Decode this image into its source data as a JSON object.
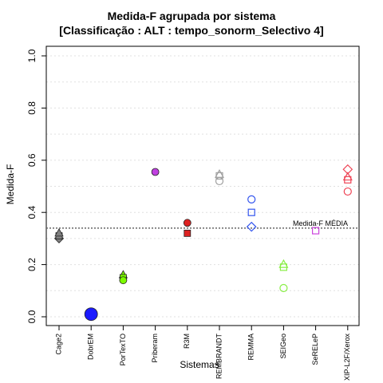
{
  "chart_data": {
    "type": "scatter",
    "title": "Medida-F agrupada por sistema",
    "subtitle": "[Classificação : ALT : tempo_sonorm_Selectivo 4]",
    "xlabel": "Sistemas",
    "ylabel": "Medida-F",
    "ylim": [
      0,
      1
    ],
    "yticks": [
      "0.0",
      "0.2",
      "0.4",
      "0.6",
      "0.8",
      "1.0"
    ],
    "grid": true,
    "categories": [
      "Cage2",
      "DobrEM",
      "PorTexTO",
      "Priberam",
      "R3M",
      "REMBRANDT",
      "REMMA",
      "SEIGeo",
      "SeRELeP",
      "XIP-L2F/Xerox"
    ],
    "reference_line": {
      "label": "Medida-F MÉDIA",
      "value": 0.34
    },
    "series": [
      {
        "category": "Cage2",
        "color": "#808080",
        "points": [
          {
            "shape": "diamond",
            "filled": true,
            "value": 0.3
          },
          {
            "shape": "square",
            "filled": true,
            "value": 0.31
          },
          {
            "shape": "triangle",
            "filled": true,
            "value": 0.32
          }
        ]
      },
      {
        "category": "DobrEM",
        "color": "#1a1aff",
        "points": [
          {
            "shape": "circle-large",
            "filled": true,
            "value": 0.01
          }
        ]
      },
      {
        "category": "PorTexTO",
        "color": "#7cfc00",
        "points": [
          {
            "shape": "triangle",
            "filled": true,
            "value": 0.16
          },
          {
            "shape": "square",
            "filled": true,
            "value": 0.15
          },
          {
            "shape": "circle",
            "filled": true,
            "value": 0.14
          }
        ]
      },
      {
        "category": "Priberam",
        "color": "#c040e0",
        "points": [
          {
            "shape": "circle",
            "filled": true,
            "value": 0.555
          }
        ]
      },
      {
        "category": "R3M",
        "color": "#dd2222",
        "points": [
          {
            "shape": "circle",
            "filled": true,
            "value": 0.36
          },
          {
            "shape": "square",
            "filled": true,
            "value": 0.32
          }
        ]
      },
      {
        "category": "REMBRANDT",
        "color": "#a0a0a0",
        "points": [
          {
            "shape": "triangle",
            "filled": false,
            "value": 0.545
          },
          {
            "shape": "square",
            "filled": false,
            "value": 0.54
          },
          {
            "shape": "circle",
            "filled": false,
            "value": 0.52
          }
        ]
      },
      {
        "category": "REMMA",
        "color": "#3355ee",
        "points": [
          {
            "shape": "circle",
            "filled": false,
            "value": 0.45
          },
          {
            "shape": "square",
            "filled": false,
            "value": 0.4
          },
          {
            "shape": "diamond",
            "filled": false,
            "value": 0.345
          }
        ]
      },
      {
        "category": "SEIGeo",
        "color": "#88ee44",
        "points": [
          {
            "shape": "triangle",
            "filled": false,
            "value": 0.2
          },
          {
            "shape": "square",
            "filled": false,
            "value": 0.19
          },
          {
            "shape": "circle",
            "filled": false,
            "value": 0.11
          }
        ]
      },
      {
        "category": "SeRELeP",
        "color": "#cc44dd",
        "points": [
          {
            "shape": "square",
            "filled": false,
            "value": 0.33
          }
        ]
      },
      {
        "category": "XIP-L2F/Xerox",
        "color": "#ee4455",
        "points": [
          {
            "shape": "diamond",
            "filled": false,
            "value": 0.565
          },
          {
            "shape": "triangle",
            "filled": false,
            "value": 0.535
          },
          {
            "shape": "square",
            "filled": false,
            "value": 0.525
          },
          {
            "shape": "circle",
            "filled": false,
            "value": 0.48
          }
        ]
      }
    ]
  }
}
